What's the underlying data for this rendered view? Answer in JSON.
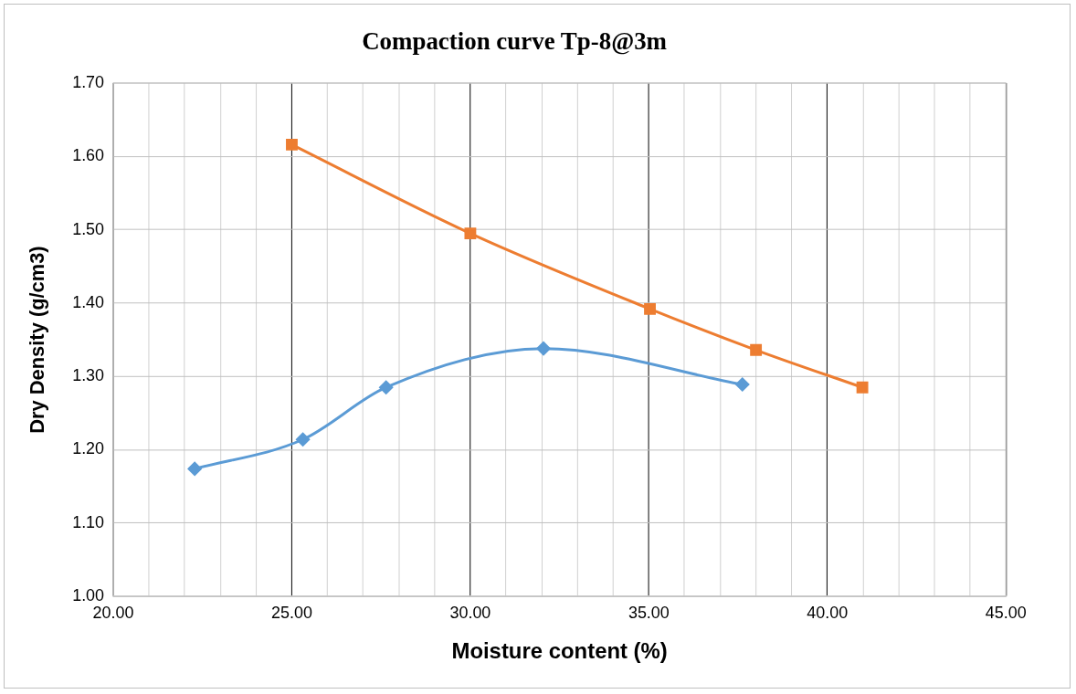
{
  "chart_data": {
    "type": "line",
    "title": "Compaction curve Tp-8@3m",
    "xlabel": "Moisture content (%)",
    "ylabel": "Dry Density (g/cm3)",
    "series": [
      {
        "marker": "diamond",
        "color": "#5b9bd5",
        "x": [
          22.28,
          25.31,
          27.64,
          32.05,
          37.62
        ],
        "values": [
          1.174,
          1.214,
          1.285,
          1.338,
          1.289
        ]
      },
      {
        "marker": "square",
        "color": "#ed7d31",
        "x": [
          25.0,
          30.0,
          35.03,
          38.0,
          40.98
        ],
        "values": [
          1.616,
          1.495,
          1.392,
          1.336,
          1.285
        ]
      }
    ],
    "xlim": [
      20,
      45
    ],
    "xticks": [
      {
        "value": 20,
        "label": "20.00"
      },
      {
        "value": 21,
        "label": null
      },
      {
        "value": 22,
        "label": null
      },
      {
        "value": 23,
        "label": null
      },
      {
        "value": 24,
        "label": null
      },
      {
        "value": 25,
        "label": "25.00"
      },
      {
        "value": 26,
        "label": null
      },
      {
        "value": 27,
        "label": null
      },
      {
        "value": 28,
        "label": null
      },
      {
        "value": 29,
        "label": null
      },
      {
        "value": 30,
        "label": "30.00"
      },
      {
        "value": 31,
        "label": null
      },
      {
        "value": 32,
        "label": null
      },
      {
        "value": 33,
        "label": null
      },
      {
        "value": 34,
        "label": null
      },
      {
        "value": 35,
        "label": "35.00"
      },
      {
        "value": 36,
        "label": null
      },
      {
        "value": 37,
        "label": null
      },
      {
        "value": 38,
        "label": null
      },
      {
        "value": 39,
        "label": null
      },
      {
        "value": 40,
        "label": "40.00"
      },
      {
        "value": 41,
        "label": null
      },
      {
        "value": 42,
        "label": null
      },
      {
        "value": 43,
        "label": null
      },
      {
        "value": 44,
        "label": null
      },
      {
        "value": 45,
        "label": "45.00"
      }
    ],
    "ylim": [
      1.0,
      1.7
    ],
    "yticks": [
      {
        "value": 1.0,
        "label": "1.00"
      },
      {
        "value": 1.1,
        "label": "1.10"
      },
      {
        "value": 1.2,
        "label": "1.20"
      },
      {
        "value": 1.3,
        "label": "1.30"
      },
      {
        "value": 1.4,
        "label": "1.40"
      },
      {
        "value": 1.5,
        "label": "1.50"
      },
      {
        "value": 1.6,
        "label": "1.60"
      },
      {
        "value": 1.7,
        "label": "1.70"
      }
    ],
    "grid": true,
    "legend": false,
    "line_style": "solid"
  }
}
